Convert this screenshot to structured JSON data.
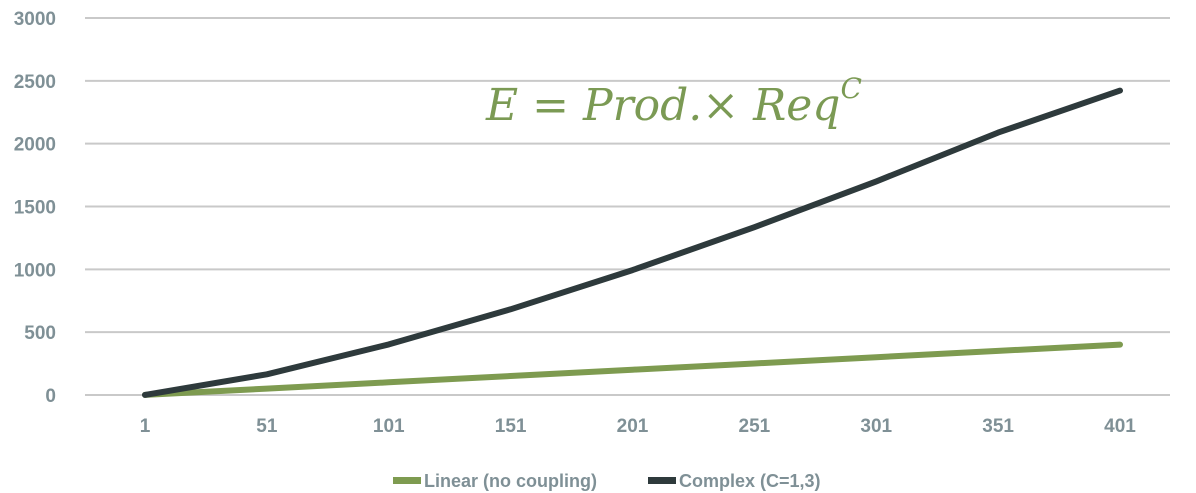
{
  "chart_data": {
    "type": "line",
    "title": "",
    "xlabel": "",
    "ylabel": "",
    "x": [
      1,
      51,
      101,
      151,
      201,
      251,
      301,
      351,
      401
    ],
    "ylim": [
      0,
      3000
    ],
    "yticks": [
      0,
      500,
      1000,
      1500,
      2000,
      2500,
      3000
    ],
    "grid": true,
    "legend_position": "bottom",
    "annotation": {
      "base": "E = Prod.× Req",
      "superscript": "C"
    },
    "series": [
      {
        "name": "Linear (no coupling)",
        "color": "#7e9b50",
        "values": [
          1,
          51,
          101,
          151,
          201,
          251,
          301,
          351,
          401
        ]
      },
      {
        "name": "Complex (C=1,3)",
        "color": "#2e3a3c",
        "values": [
          1,
          165,
          403,
          682,
          994,
          1335,
          1700,
          2088,
          2422
        ]
      }
    ]
  }
}
